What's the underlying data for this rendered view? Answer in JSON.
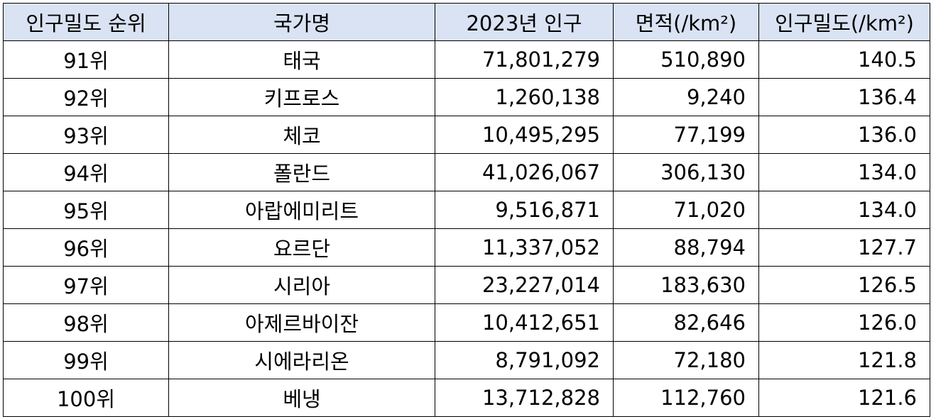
{
  "headers": [
    "인구밀도 순위",
    "국가명",
    "2023년 인구",
    "면적(/km²)",
    "인구밀도(/km²)"
  ],
  "rows": [
    {
      "rank": "91위",
      "country": "태국",
      "population": "71,801,279",
      "area": "510,890",
      "density": "140.5"
    },
    {
      "rank": "92위",
      "country": "키프로스",
      "population": "1,260,138",
      "area": "9,240",
      "density": "136.4"
    },
    {
      "rank": "93위",
      "country": "체코",
      "population": "10,495,295",
      "area": "77,199",
      "density": "136.0"
    },
    {
      "rank": "94위",
      "country": "폴란드",
      "population": "41,026,067",
      "area": "306,130",
      "density": "134.0"
    },
    {
      "rank": "95위",
      "country": "아랍에미리트",
      "population": "9,516,871",
      "area": "71,020",
      "density": "134.0"
    },
    {
      "rank": "96위",
      "country": "요르단",
      "population": "11,337,052",
      "area": "88,794",
      "density": "127.7"
    },
    {
      "rank": "97위",
      "country": "시리아",
      "population": "23,227,014",
      "area": "183,630",
      "density": "126.5"
    },
    {
      "rank": "98위",
      "country": "아제르바이잔",
      "population": "10,412,651",
      "area": "82,646",
      "density": "126.0"
    },
    {
      "rank": "99위",
      "country": "시에라리온",
      "population": "8,791,092",
      "area": "72,180",
      "density": "121.8"
    },
    {
      "rank": "100위",
      "country": "베냉",
      "population": "13,712,828",
      "area": "112,760",
      "density": "121.6"
    }
  ]
}
